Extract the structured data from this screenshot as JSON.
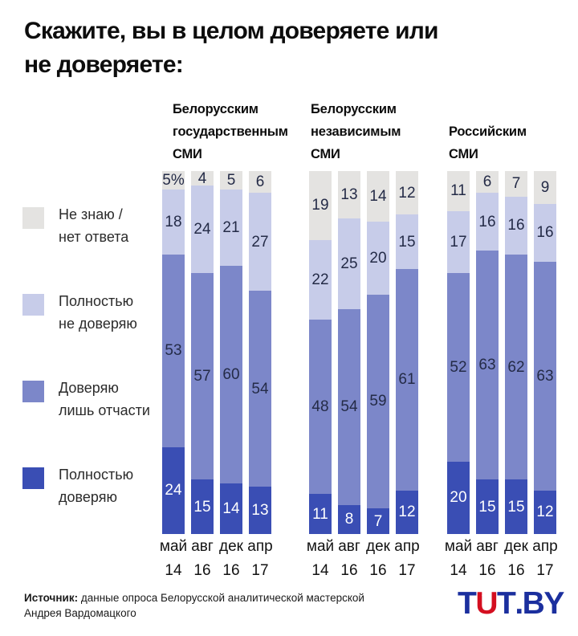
{
  "title": "Скажите, вы в целом доверяете или\nне доверяете:",
  "footer": {
    "source_label": "Источник:",
    "source_line1": "данные опроса Белорусской аналитической мастерской",
    "source_line2": "Андрея Вардомацкого"
  },
  "logo": {
    "text": "TUT.BY",
    "blue": "#1b2f9e",
    "red": "#d40f20",
    "letters": [
      {
        "ch": "T",
        "color": "#1b2f9e"
      },
      {
        "ch": "U",
        "color": "#d40f20",
        "arrow": true
      },
      {
        "ch": "T",
        "color": "#1b2f9e"
      },
      {
        "ch": ".",
        "color": "#1b2f9e"
      },
      {
        "ch": "B",
        "color": "#1b2f9e"
      },
      {
        "ch": "Y",
        "color": "#1b2f9e"
      }
    ]
  },
  "chart_data": {
    "type": "bar",
    "subtype": "stacked-100-percent",
    "units": "%",
    "ylim": [
      0,
      100
    ],
    "grid": false,
    "legend_position": "left",
    "stack_order_bottom_to_top": [
      "fully_trust",
      "partly_trust",
      "fully_distrust",
      "dont_know"
    ],
    "legend": [
      {
        "key": "dont_know",
        "label_lines": [
          "Не знаю /",
          "нет ответа"
        ],
        "color": "#e4e3e1"
      },
      {
        "key": "fully_distrust",
        "label_lines": [
          "Полностью",
          "не доверяю"
        ],
        "color": "#c7cce9"
      },
      {
        "key": "partly_trust",
        "label_lines": [
          "Доверяю",
          "лишь отчасти"
        ],
        "color": "#7c87c9"
      },
      {
        "key": "fully_trust",
        "label_lines": [
          "Полностью",
          "доверяю"
        ],
        "color": "#3a4eb4"
      }
    ],
    "categories": [
      "май 14",
      "авг 16",
      "дек 16",
      "апр 17"
    ],
    "groups": [
      {
        "title_lines": [
          "Белорусским",
          "государственным",
          "СМИ"
        ],
        "bars": [
          {
            "month": "май",
            "year": "14",
            "values": {
              "fully_trust": 24,
              "partly_trust": 53,
              "fully_distrust": 18,
              "dont_know": 5
            },
            "labels": {
              "dont_know": "5%"
            }
          },
          {
            "month": "авг",
            "year": "16",
            "values": {
              "fully_trust": 15,
              "partly_trust": 57,
              "fully_distrust": 24,
              "dont_know": 4
            }
          },
          {
            "month": "дек",
            "year": "16",
            "values": {
              "fully_trust": 14,
              "partly_trust": 60,
              "fully_distrust": 21,
              "dont_know": 5
            }
          },
          {
            "month": "апр",
            "year": "17",
            "values": {
              "fully_trust": 13,
              "partly_trust": 54,
              "fully_distrust": 27,
              "dont_know": 6
            }
          }
        ]
      },
      {
        "title_lines": [
          "Белорусским",
          "независимым",
          "СМИ"
        ],
        "bars": [
          {
            "month": "май",
            "year": "14",
            "values": {
              "fully_trust": 11,
              "partly_trust": 48,
              "fully_distrust": 22,
              "dont_know": 19
            }
          },
          {
            "month": "авг",
            "year": "16",
            "values": {
              "fully_trust": 8,
              "partly_trust": 54,
              "fully_distrust": 25,
              "dont_know": 13
            }
          },
          {
            "month": "дек",
            "year": "16",
            "values": {
              "fully_trust": 7,
              "partly_trust": 59,
              "fully_distrust": 20,
              "dont_know": 14
            }
          },
          {
            "month": "апр",
            "year": "17",
            "values": {
              "fully_trust": 12,
              "partly_trust": 61,
              "fully_distrust": 15,
              "dont_know": 12
            }
          }
        ]
      },
      {
        "title_lines": [
          "Российским",
          "СМИ"
        ],
        "bars": [
          {
            "month": "май",
            "year": "14",
            "values": {
              "fully_trust": 20,
              "partly_trust": 52,
              "fully_distrust": 17,
              "dont_know": 11
            }
          },
          {
            "month": "авг",
            "year": "16",
            "values": {
              "fully_trust": 15,
              "partly_trust": 63,
              "fully_distrust": 16,
              "dont_know": 6
            }
          },
          {
            "month": "дек",
            "year": "16",
            "values": {
              "fully_trust": 15,
              "partly_trust": 62,
              "fully_distrust": 16,
              "dont_know": 7
            }
          },
          {
            "month": "апр",
            "year": "17",
            "values": {
              "fully_trust": 12,
              "partly_trust": 63,
              "fully_distrust": 16,
              "dont_know": 9
            }
          }
        ]
      }
    ]
  }
}
